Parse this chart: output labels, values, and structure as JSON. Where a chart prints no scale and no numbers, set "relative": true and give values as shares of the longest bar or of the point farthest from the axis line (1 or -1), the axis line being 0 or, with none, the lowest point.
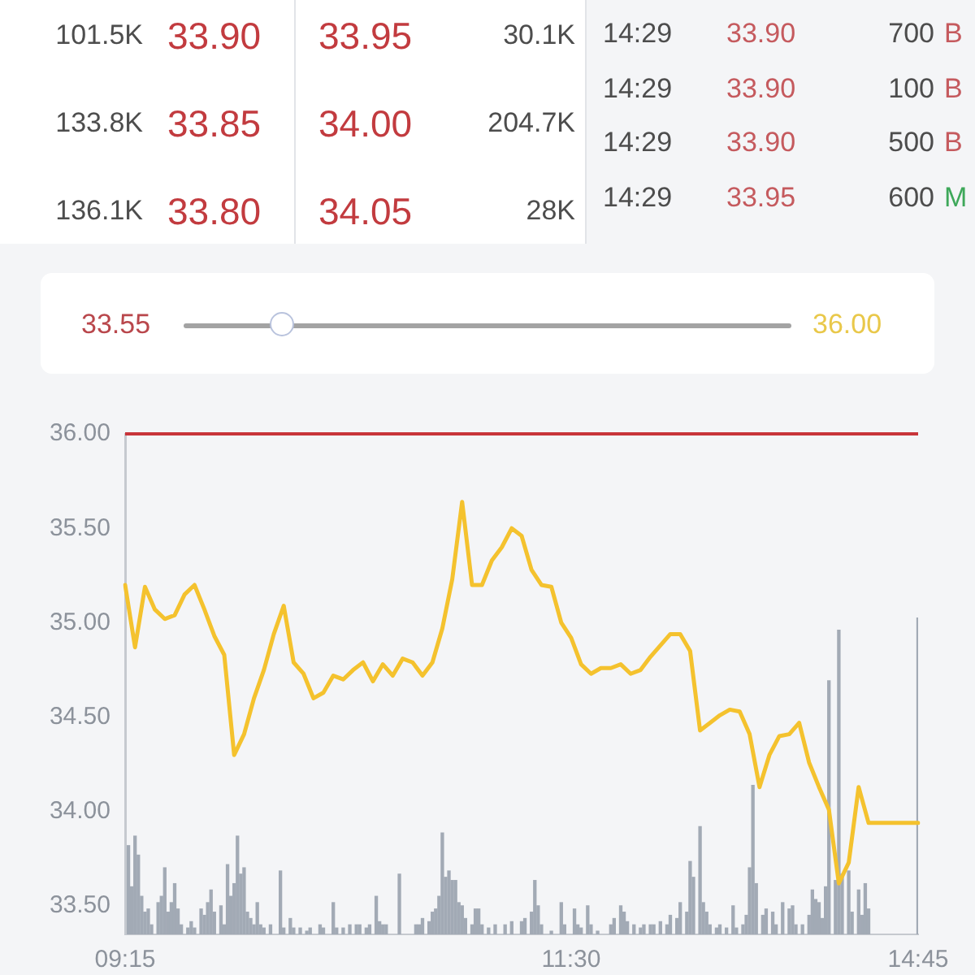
{
  "chart_data": [
    {
      "type": "other",
      "annotations": [
        "101.5K",
        "33.90",
        "33.95",
        "30.1K",
        "133.8K",
        "33.85",
        "34.00",
        "204.7K",
        "136.1K",
        "33.80",
        "34.05",
        "28K"
      ],
      "colors": [
        "#4d4d4d",
        "#c23b3f",
        "#c23b3f",
        "#4d4d4d",
        "#4d4d4d",
        "#c23b3f",
        "#c23b3f",
        "#4d4d4d",
        "#4d4d4d",
        "#c23b3f",
        "#c23b3f",
        "#4d4d4d"
      ]
    },
    {
      "type": "other",
      "annotations": [
        "14:29",
        "33.90",
        "700",
        "B",
        "14:29",
        "33.90",
        "100",
        "B",
        "14:29",
        "33.90",
        "500",
        "B",
        "14:29",
        "33.95",
        "600",
        "M"
      ],
      "colors": [
        "#4d4d4d",
        "#c55a5e",
        "#4d4d4d",
        "#c55a5e",
        "#4d4d4d",
        "#c55a5e",
        "#4d4d4d",
        "#c55a5e",
        "#4d4d4d",
        "#c55a5e",
        "#4d4d4d",
        "#c55a5e",
        "#4d4d4d",
        "#c55a5e",
        "#4d4d4d",
        "#3ea85a"
      ]
    },
    {
      "type": "other",
      "annotations": [
        "33.55",
        "36.00"
      ],
      "colors": [
        "#b9474c",
        "#e9c84a"
      ]
    },
    {
      "type": "line",
      "color": "#f4c22e",
      "marker": "none",
      "tick_labels": "y",
      "categories": [
        null,
        null,
        null,
        null,
        null,
        null,
        null,
        null,
        null,
        null,
        null,
        null,
        null,
        null,
        null,
        null,
        null,
        null,
        null,
        null,
        null,
        null,
        null,
        null,
        null,
        null,
        null,
        null,
        null,
        null,
        null,
        null,
        null,
        null,
        null,
        null,
        null,
        null,
        null,
        null,
        null,
        null,
        null,
        null,
        null,
        null,
        null,
        null,
        null,
        null,
        null,
        null,
        null,
        null,
        null,
        null,
        null,
        null,
        null,
        null,
        null,
        null,
        null,
        null,
        null,
        null,
        null,
        null,
        null,
        null,
        null,
        null,
        null,
        null,
        null,
        null,
        null,
        null,
        null,
        null,
        null
      ],
      "values": [
        35.2,
        34.87,
        35.19,
        35.07,
        35.02,
        35.04,
        35.15,
        35.2,
        35.07,
        34.93,
        34.83,
        34.3,
        34.41,
        34.6,
        34.75,
        34.94,
        35.09,
        34.79,
        34.73,
        34.6,
        34.63,
        34.72,
        34.7,
        34.75,
        34.79,
        34.69,
        34.78,
        34.72,
        34.81,
        34.79,
        34.72,
        34.79,
        34.97,
        35.23,
        35.64,
        35.2,
        35.2,
        35.33,
        35.4,
        35.5,
        35.46,
        35.28,
        35.2,
        35.19,
        35.0,
        34.92,
        34.78,
        34.73,
        34.76,
        34.76,
        34.78,
        34.73,
        34.75,
        34.82,
        34.88,
        34.94,
        34.94,
        34.85,
        34.43,
        34.47,
        34.51,
        34.54,
        34.53,
        34.41,
        34.13,
        34.3,
        34.4,
        34.41,
        34.47,
        34.26,
        34.13,
        34.01,
        33.62,
        33.73,
        34.13,
        33.94,
        33.94,
        33.94,
        33.94,
        33.94,
        33.94
      ],
      "ylim": [
        33.35,
        36.0
      ],
      "yticks": [
        {
          "value": 33.5,
          "label": "33.50"
        },
        {
          "value": 34,
          "label": "34.00"
        },
        {
          "value": 34.5,
          "label": "34.50"
        },
        {
          "value": 35,
          "label": "35.00"
        },
        {
          "value": 35.5,
          "label": "35.50"
        },
        {
          "value": 36,
          "label": "36.00"
        }
      ],
      "ref_lines": [
        {
          "axis": "y",
          "value": 36.0,
          "color": "#c8353a"
        }
      ]
    },
    {
      "type": "bar",
      "relative": true,
      "color": "#a2aab5",
      "categories": [
        "09:15",
        null,
        null,
        null,
        null,
        null,
        null,
        null,
        null,
        null,
        null,
        null,
        null,
        null,
        null,
        null,
        null,
        null,
        null,
        null,
        null,
        null,
        null,
        null,
        null,
        null,
        null,
        null,
        null,
        null,
        null,
        null,
        null,
        null,
        null,
        null,
        null,
        null,
        null,
        null,
        null,
        null,
        null,
        null,
        null,
        null,
        null,
        null,
        null,
        null,
        null,
        null,
        null,
        null,
        null,
        null,
        null,
        null,
        null,
        null,
        null,
        null,
        null,
        null,
        null,
        null,
        null,
        null,
        null,
        null,
        null,
        null,
        null,
        null,
        null,
        null,
        null,
        null,
        null,
        null,
        null,
        null,
        null,
        null,
        null,
        null,
        null,
        null,
        null,
        null,
        null,
        null,
        null,
        null,
        null,
        null,
        null,
        null,
        null,
        null,
        null,
        null,
        null,
        null,
        null,
        null,
        null,
        null,
        null,
        null,
        null,
        null,
        null,
        null,
        null,
        null,
        null,
        null,
        null,
        null,
        null,
        null,
        null,
        null,
        null,
        null,
        null,
        null,
        null,
        null,
        null,
        null,
        null,
        null,
        null,
        "11:30",
        null,
        null,
        null,
        null,
        null,
        null,
        null,
        null,
        null,
        null,
        null,
        null,
        null,
        null,
        null,
        null,
        null,
        null,
        null,
        null,
        null,
        null,
        null,
        null,
        null,
        null,
        null,
        null,
        null,
        null,
        null,
        null,
        null,
        null,
        null,
        null,
        null,
        null,
        null,
        null,
        null,
        null,
        null,
        null,
        null,
        null,
        null,
        null,
        null,
        null,
        null,
        null,
        null,
        null,
        null,
        null,
        null,
        null,
        null,
        null,
        null,
        null,
        null,
        null,
        null,
        null,
        null,
        null,
        null,
        null,
        null,
        null,
        null,
        null,
        null,
        null,
        null,
        null,
        null,
        null,
        null,
        null,
        null,
        null,
        null,
        null,
        null,
        null,
        null,
        null,
        null,
        null,
        null,
        null,
        null,
        null,
        null,
        null,
        null,
        null,
        null,
        null,
        null,
        null,
        "14:45"
      ],
      "values": [
        null,
        0.28,
        0.15,
        0.31,
        0.25,
        0.12,
        0.07,
        0.08,
        0.03,
        null,
        0.1,
        0.12,
        0.21,
        0.07,
        0.1,
        0.16,
        0.08,
        0.03,
        null,
        0.02,
        0.04,
        0.02,
        null,
        0.08,
        0.06,
        0.1,
        0.14,
        0.07,
        null,
        0.09,
        0.03,
        0.22,
        0.12,
        0.16,
        0.31,
        0.19,
        0.21,
        0.07,
        0.05,
        0.03,
        0.1,
        0.03,
        0.02,
        null,
        0.03,
        null,
        null,
        0.2,
        0.02,
        null,
        0.05,
        0.02,
        null,
        0.02,
        null,
        0.01,
        0.02,
        null,
        null,
        0.03,
        0.02,
        null,
        null,
        0.1,
        0.02,
        null,
        0.02,
        null,
        0.03,
        null,
        0.03,
        0.03,
        null,
        0.02,
        0.03,
        null,
        0.12,
        0.04,
        0.03,
        0.03,
        null,
        null,
        null,
        0.19,
        null,
        null,
        null,
        null,
        0.03,
        0.03,
        0.05,
        null,
        0.04,
        0.07,
        0.08,
        0.12,
        0.32,
        0.18,
        0.2,
        0.17,
        0.17,
        0.1,
        0.09,
        0.05,
        null,
        0.03,
        0.08,
        0.08,
        0.03,
        null,
        0.02,
        null,
        0.03,
        null,
        null,
        0.03,
        null,
        0.04,
        null,
        null,
        0.04,
        0.05,
        null,
        0.07,
        0.17,
        0.09,
        0.03,
        null,
        null,
        0.01,
        null,
        null,
        0.1,
        0.03,
        null,
        null,
        0.08,
        0.03,
        0.02,
        null,
        0.09,
        0.03,
        null,
        0.01,
        null,
        null,
        null,
        0.03,
        0.05,
        null,
        0.09,
        0.07,
        0.04,
        null,
        0.03,
        null,
        0.02,
        0.03,
        null,
        0.03,
        0.03,
        null,
        0.04,
        null,
        0.03,
        0.06,
        null,
        0.05,
        0.1,
        null,
        0.07,
        0.23,
        0.18,
        null,
        0.34,
        0.1,
        0.07,
        0.03,
        null,
        0.02,
        0.03,
        null,
        0.02,
        null,
        0.09,
        0.02,
        null,
        0.03,
        0.06,
        0.21,
        0.47,
        0.16,
        null,
        0.06,
        0.08,
        null,
        0.07,
        0.03,
        null,
        0.1,
        null,
        0.08,
        0.09,
        0.03,
        null,
        0.03,
        null,
        0.06,
        0.14,
        0.11,
        0.1,
        0.05,
        0.15,
        0.8,
        null,
        0.17,
        0.96,
        0.19,
        null,
        0.2,
        0.07,
        null,
        0.14,
        0.06,
        0.16,
        0.08,
        null,
        null,
        null,
        null,
        null,
        null,
        null,
        null,
        null,
        null,
        null,
        null,
        null,
        null,
        1
      ]
    }
  ]
}
